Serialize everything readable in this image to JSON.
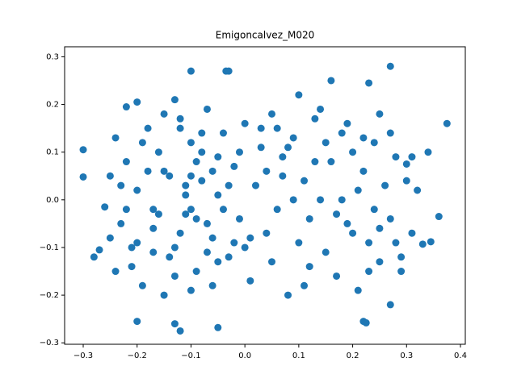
{
  "chart_data": {
    "type": "scatter",
    "title": "Emigoncalvez_M020",
    "color": "#1f77b4",
    "xlim": [
      -0.3345,
      0.409
    ],
    "ylim": [
      -0.303,
      0.321
    ],
    "xticks": [
      {
        "value": -0.3,
        "label": "−0.3"
      },
      {
        "value": -0.2,
        "label": "−0.2"
      },
      {
        "value": -0.1,
        "label": "−0.1"
      },
      {
        "value": 0,
        "label": "0.0"
      },
      0.1,
      0.2,
      0.3,
      0.4
    ],
    "yticks": [
      {
        "value": -0.3,
        "label": "−0.3"
      },
      {
        "value": -0.2,
        "label": "−0.2"
      },
      {
        "value": -0.1,
        "label": "−0.1"
      },
      {
        "value": 0,
        "label": "0.0"
      },
      0.1,
      0.2,
      0.3
    ],
    "x": [
      -0.3,
      -0.3,
      0.375,
      0.27,
      -0.1,
      -0.035,
      -0.03,
      -0.2,
      -0.13,
      -0.12,
      -0.05,
      0.22,
      0.225,
      0.36,
      0.345,
      0.33,
      -0.28,
      -0.27,
      0.27,
      0.23,
      0.16,
      0.1,
      0.34,
      0.3,
      -0.22,
      -0.2,
      -0.13,
      0.25,
      -0.26,
      -0.25,
      -0.24,
      -0.23,
      -0.22,
      -0.21,
      -0.2,
      -0.19,
      -0.18,
      -0.17,
      -0.16,
      -0.15,
      -0.14,
      -0.13,
      -0.12,
      -0.11,
      -0.1,
      -0.09,
      -0.08,
      -0.07,
      -0.06,
      -0.05,
      -0.04,
      -0.03,
      -0.02,
      -0.01,
      0.0,
      0.01,
      0.02,
      0.03,
      0.04,
      0.05,
      0.06,
      0.07,
      0.08,
      0.09,
      0.1,
      0.11,
      0.12,
      0.13,
      0.14,
      0.15,
      0.16,
      0.17,
      0.18,
      0.19,
      0.2,
      0.21,
      0.22,
      0.23,
      0.24,
      0.25,
      0.26,
      0.27,
      0.28,
      0.29,
      0.3,
      0.31,
      0.32,
      -0.25,
      -0.23,
      -0.21,
      -0.19,
      -0.17,
      -0.15,
      -0.13,
      -0.11,
      -0.09,
      -0.07,
      -0.05,
      -0.03,
      -0.01,
      0.01,
      0.03,
      0.05,
      0.07,
      0.09,
      0.11,
      0.13,
      0.15,
      0.17,
      0.19,
      0.21,
      0.23,
      0.25,
      0.27,
      0.29,
      0.31,
      -0.12,
      -0.1,
      -0.08,
      -0.06,
      -0.11,
      -0.09,
      -0.07,
      -0.05,
      -0.1,
      -0.08,
      -0.06,
      -0.04,
      -0.02,
      -0.14,
      0.04,
      0.06,
      0.08,
      0.12,
      0.14,
      0.18,
      0.2,
      0.22,
      0.24,
      0.28,
      -0.16,
      -0.18,
      -0.2,
      -0.22,
      -0.24,
      -0.12,
      -0.1,
      -0.15,
      -0.17,
      0.0
    ],
    "values": [
      0.105,
      0.048,
      0.16,
      0.28,
      0.27,
      0.27,
      0.27,
      -0.255,
      -0.26,
      -0.275,
      -0.268,
      -0.255,
      -0.258,
      -0.035,
      -0.088,
      -0.093,
      -0.12,
      -0.105,
      -0.22,
      0.245,
      0.25,
      0.22,
      0.1,
      0.075,
      0.195,
      0.205,
      0.21,
      0.18,
      -0.015,
      0.05,
      0.13,
      -0.05,
      0.08,
      -0.14,
      0.02,
      -0.18,
      0.15,
      -0.06,
      0.1,
      -0.2,
      0.05,
      -0.1,
      0.17,
      -0.03,
      0.12,
      -0.15,
      0.04,
      0.19,
      -0.08,
      0.01,
      0.14,
      -0.12,
      0.07,
      -0.04,
      0.16,
      -0.17,
      0.03,
      0.11,
      -0.07,
      0.18,
      -0.02,
      0.09,
      -0.2,
      0.13,
      -0.09,
      0.04,
      -0.14,
      0.17,
      0.0,
      -0.11,
      0.08,
      -0.16,
      0.14,
      -0.05,
      0.1,
      -0.19,
      0.06,
      -0.09,
      0.12,
      -0.13,
      0.03,
      -0.04,
      0.09,
      -0.12,
      0.04,
      -0.07,
      0.02,
      -0.08,
      0.03,
      -0.1,
      0.12,
      -0.02,
      0.06,
      -0.16,
      0.01,
      0.08,
      -0.05,
      -0.13,
      0.03,
      0.1,
      -0.08,
      0.15,
      -0.13,
      0.05,
      0.0,
      -0.18,
      0.08,
      0.12,
      -0.03,
      0.16,
      0.02,
      -0.15,
      -0.06,
      0.14,
      -0.15,
      0.09,
      -0.07,
      -0.02,
      0.14,
      0.06,
      0.03,
      -0.04,
      -0.11,
      0.09,
      -0.19,
      0.1,
      -0.18,
      -0.02,
      -0.09,
      -0.12,
      0.06,
      0.15,
      0.11,
      -0.04,
      0.19,
      0.0,
      -0.07,
      0.13,
      -0.02,
      -0.09,
      -0.03,
      0.06,
      -0.09,
      -0.02,
      -0.15,
      0.15,
      0.05,
      0.18,
      -0.11,
      -0.1
    ]
  }
}
